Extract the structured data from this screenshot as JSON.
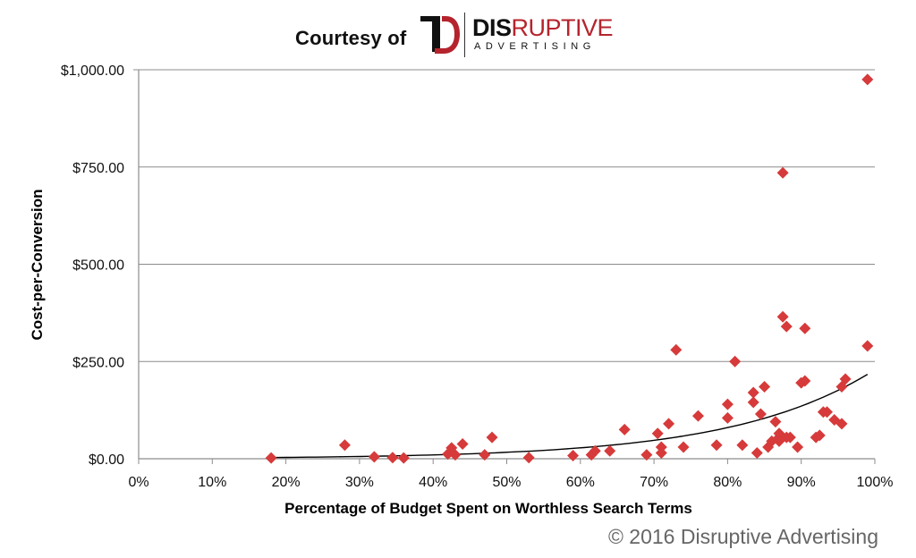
{
  "header": {
    "courtesy_text": "Courtesy of",
    "logo_word_dark": "DIS",
    "logo_word_red": "RUPTIVE",
    "logo_sub": "ADVERTISING",
    "brand_red": "#b5242d"
  },
  "footer": {
    "copyright": "© 2016 Disruptive Advertising"
  },
  "chart_data": {
    "type": "scatter",
    "title": "",
    "xlabel": "Percentage of Budget Spent on Worthless Search Terms",
    "ylabel": "Cost-per-Conversion",
    "xlim": [
      0,
      100
    ],
    "ylim": [
      0,
      1000
    ],
    "x_ticks": [
      0,
      10,
      20,
      30,
      40,
      50,
      60,
      70,
      80,
      90,
      100
    ],
    "x_tick_labels": [
      "0%",
      "10%",
      "20%",
      "30%",
      "40%",
      "50%",
      "60%",
      "70%",
      "80%",
      "90%",
      "100%"
    ],
    "y_ticks": [
      0,
      250,
      500,
      750,
      1000
    ],
    "y_tick_labels": [
      "$0.00",
      "$250.00",
      "$500.00",
      "$750.00",
      "$1,000.00"
    ],
    "grid": "horizontal",
    "marker": "diamond",
    "marker_color": "#d63a3a",
    "trendline": {
      "type": "exponential",
      "a": 1.2,
      "b": 0.0525,
      "color": "#000000"
    },
    "x": [
      18,
      28,
      32,
      34.5,
      36,
      42,
      42.5,
      43,
      44,
      47,
      48,
      53,
      59,
      61.5,
      62,
      64,
      66,
      69,
      70.5,
      71,
      71,
      72,
      73,
      74,
      76,
      78.5,
      80,
      80,
      81,
      82,
      83.5,
      83.5,
      84,
      84.5,
      85,
      85.5,
      86,
      86.5,
      87,
      87,
      87,
      87.5,
      87.5,
      88,
      88,
      88.5,
      89.5,
      90,
      90.5,
      90.5,
      92,
      92.5,
      93,
      93.5,
      94.5,
      95.5,
      95.5,
      96,
      99,
      99
    ],
    "y": [
      2,
      35,
      5,
      3,
      2,
      12,
      28,
      10,
      38,
      10,
      55,
      3,
      8,
      10,
      20,
      20,
      75,
      10,
      65,
      15,
      30,
      90,
      280,
      30,
      110,
      35,
      140,
      105,
      250,
      35,
      170,
      145,
      15,
      115,
      185,
      30,
      45,
      95,
      55,
      65,
      45,
      365,
      735,
      340,
      55,
      55,
      30,
      195,
      200,
      335,
      55,
      60,
      120,
      120,
      100,
      185,
      90,
      205,
      975,
      290
    ]
  }
}
